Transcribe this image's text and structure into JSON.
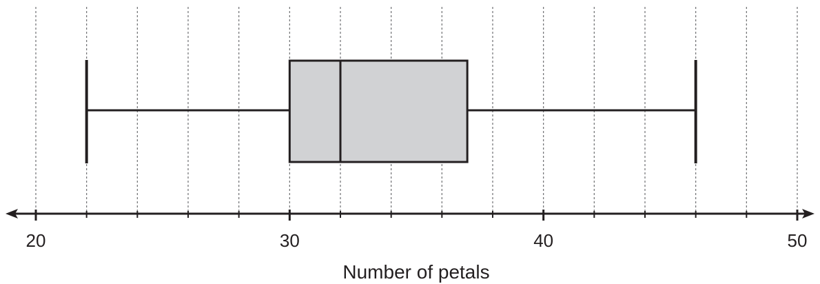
{
  "chart_data": {
    "type": "boxplot",
    "title": "",
    "xlabel": "Number of petals",
    "ylabel": "",
    "xlim": [
      20,
      50
    ],
    "major_ticks": [
      20,
      30,
      40,
      50
    ],
    "tick_labels": [
      "20",
      "30",
      "40",
      "50"
    ],
    "gridline_step": 2,
    "grid": "vertical dashed",
    "box": {
      "min": 22,
      "q1": 30,
      "median": 32,
      "q3": 37,
      "max": 46
    },
    "colors": {
      "box_fill": "#d1d2d4",
      "stroke": "#231f20",
      "grid": "#6d6e71"
    }
  }
}
